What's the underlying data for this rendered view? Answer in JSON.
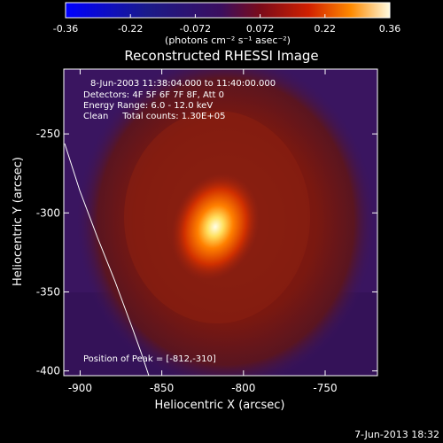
{
  "colorbar": {
    "ticks": [
      "-0.36",
      "-0.22",
      "-0.072",
      "0.072",
      "0.22",
      "0.36"
    ],
    "unit_label": "(photons cm⁻² s⁻¹ asec⁻²)"
  },
  "title": "Reconstructed RHESSI Image",
  "annotations": [
    "8-Jun-2003 11:38:04.000 to 11:40:00.000",
    "Detectors: 4F 5F 6F 7F 8F, Att 0",
    "Energy Range: 6.0 - 12.0 keV",
    "Clean     Total counts: 1.30E+05"
  ],
  "peak_text": "Position of Peak = [-812,-310]",
  "footer_date": "7-Jun-2013 18:32",
  "axes": {
    "xlabel": "Heliocentric X (arcsec)",
    "ylabel": "Heliocentric Y (arcsec)",
    "x_ticks": [
      "-900",
      "-850",
      "-800",
      "-750"
    ],
    "y_ticks": [
      "-250",
      "-300",
      "-350",
      "-400"
    ],
    "x_range": [
      -910,
      -718
    ],
    "y_range": [
      -403,
      -209
    ]
  },
  "peak": {
    "x": -812,
    "y": -310
  },
  "colors": {
    "background": "#000000",
    "plot_background": "#3a1560",
    "limb_line": "#ffffff"
  }
}
